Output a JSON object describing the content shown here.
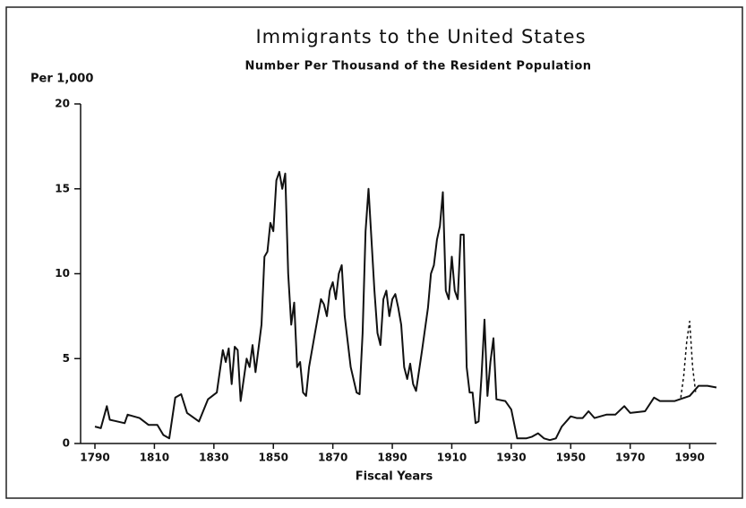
{
  "chart_data": {
    "type": "line",
    "title": "Immigrants to the United States",
    "subtitle": "Number Per Thousand of the Resident Population",
    "y_label": "Per 1,000",
    "x_label": "Fiscal Years",
    "xlim": [
      1785,
      1999
    ],
    "xticks": [
      1790,
      1810,
      1830,
      1850,
      1870,
      1890,
      1910,
      1930,
      1950,
      1970,
      1990
    ],
    "ylim": [
      0,
      20
    ],
    "yticks": [
      0,
      5,
      10,
      15,
      20
    ],
    "series": [
      {
        "color": "#111111",
        "style": "solid",
        "x": [
          1790,
          1792,
          1794,
          1795,
          1800,
          1801,
          1805,
          1808,
          1811,
          1813,
          1815,
          1817,
          1819,
          1821,
          1825,
          1828,
          1831,
          1833,
          1834,
          1835,
          1836,
          1837,
          1838,
          1839,
          1841,
          1842,
          1843,
          1844,
          1846,
          1847,
          1848,
          1849,
          1850,
          1851,
          1852,
          1853,
          1854,
          1855,
          1856,
          1857,
          1858,
          1859,
          1860,
          1861,
          1862,
          1864,
          1866,
          1867,
          1868,
          1869,
          1870,
          1871,
          1872,
          1873,
          1874,
          1876,
          1878,
          1879,
          1880,
          1881,
          1882,
          1883,
          1884,
          1885,
          1886,
          1887,
          1888,
          1889,
          1890,
          1891,
          1892,
          1893,
          1894,
          1895,
          1896,
          1897,
          1898,
          1900,
          1902,
          1903,
          1904,
          1905,
          1906,
          1907,
          1908,
          1909,
          1910,
          1911,
          1912,
          1913,
          1914,
          1915,
          1916,
          1917,
          1918,
          1919,
          1920,
          1921,
          1922,
          1923,
          1924,
          1925,
          1928,
          1930,
          1932,
          1935,
          1937,
          1939,
          1941,
          1943,
          1945,
          1947,
          1950,
          1952,
          1954,
          1956,
          1958,
          1962,
          1965,
          1968,
          1970,
          1975,
          1978,
          1980,
          1985,
          1990,
          1993,
          1996,
          1999
        ],
        "values": [
          1.0,
          0.9,
          2.2,
          1.4,
          1.2,
          1.7,
          1.5,
          1.1,
          1.1,
          0.5,
          0.3,
          2.7,
          2.9,
          1.8,
          1.3,
          2.6,
          3.0,
          5.5,
          4.8,
          5.6,
          3.5,
          5.7,
          5.5,
          2.5,
          5.0,
          4.5,
          5.8,
          4.2,
          7.0,
          11.0,
          11.3,
          13.0,
          12.5,
          15.5,
          16.0,
          15.0,
          15.9,
          10.0,
          7.0,
          8.3,
          4.5,
          4.8,
          3.0,
          2.8,
          4.5,
          6.5,
          8.5,
          8.2,
          7.5,
          9.0,
          9.5,
          8.5,
          10.0,
          10.5,
          7.5,
          4.5,
          3.0,
          2.9,
          6.5,
          12.5,
          15.0,
          12.0,
          9.0,
          6.5,
          5.8,
          8.5,
          9.0,
          7.5,
          8.5,
          8.8,
          8.0,
          7.0,
          4.5,
          3.8,
          4.7,
          3.5,
          3.1,
          5.5,
          8.0,
          10.0,
          10.5,
          12.0,
          12.8,
          14.8,
          9.0,
          8.5,
          11.0,
          9.0,
          8.5,
          12.3,
          12.3,
          4.5,
          3.0,
          3.0,
          1.2,
          1.3,
          4.0,
          7.3,
          2.8,
          4.8,
          6.2,
          2.6,
          2.5,
          2.0,
          0.3,
          0.3,
          0.4,
          0.6,
          0.3,
          0.2,
          0.3,
          1.0,
          1.6,
          1.5,
          1.5,
          1.9,
          1.5,
          1.7,
          1.7,
          2.2,
          1.8,
          1.9,
          2.7,
          2.5,
          2.5,
          2.8,
          3.4,
          3.4,
          3.3
        ]
      },
      {
        "color": "#111111",
        "style": "dashed",
        "x": [
          1987,
          1988,
          1989,
          1990,
          1991,
          1992
        ],
        "values": [
          2.7,
          4.0,
          6.0,
          7.2,
          4.5,
          3.0
        ]
      }
    ]
  }
}
